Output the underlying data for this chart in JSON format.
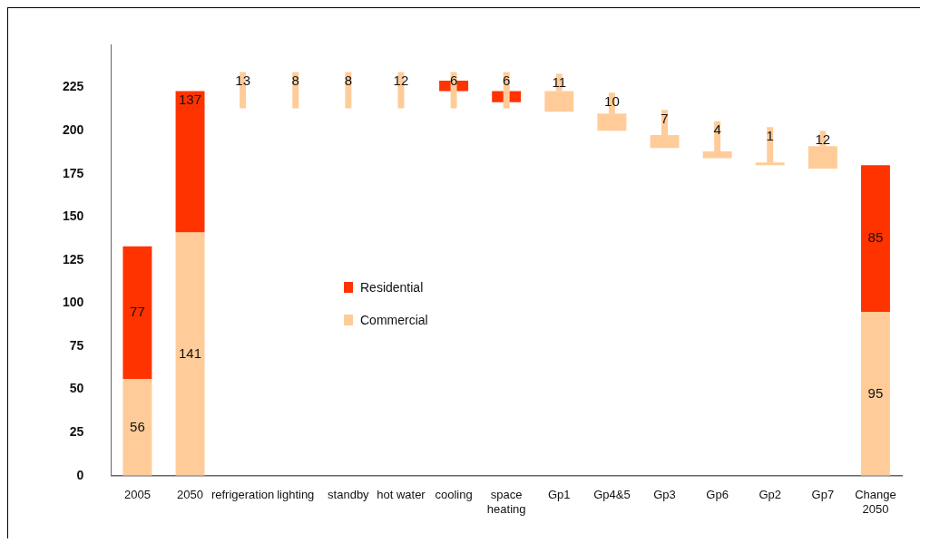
{
  "chart_data": {
    "type": "bar",
    "categories": [
      "2005",
      "2050",
      "refrigeration",
      "lighting",
      "standby",
      "hot water",
      "cooling",
      "space heating",
      "Gp1",
      "Gp4&5",
      "Gp3",
      "Gp6",
      "Gp2",
      "Gp7",
      "Change 2050"
    ],
    "series": [
      {
        "name": "Residential",
        "color": "#ff3300",
        "base": [
          56,
          141,
          null,
          null,
          null,
          null,
          223,
          216.5,
          null,
          null,
          null,
          null,
          null,
          null,
          95
        ],
        "values": [
          77,
          82,
          null,
          null,
          null,
          null,
          6,
          6.5,
          null,
          null,
          null,
          null,
          null,
          null,
          85
        ],
        "value_labels": [
          "77",
          null,
          null,
          null,
          null,
          null,
          null,
          null,
          null,
          null,
          null,
          null,
          null,
          null,
          "85"
        ]
      },
      {
        "name": "Commercial",
        "color": "#ffcc99",
        "base": [
          0,
          0,
          null,
          null,
          null,
          null,
          null,
          null,
          211,
          200,
          190,
          184,
          180,
          178,
          0
        ],
        "values": [
          56,
          141,
          null,
          null,
          null,
          null,
          null,
          null,
          12,
          10,
          7.5,
          4,
          1.5,
          13,
          95
        ],
        "value_labels": [
          "56",
          "141",
          null,
          null,
          null,
          null,
          null,
          null,
          null,
          null,
          null,
          null,
          null,
          null,
          "95"
        ]
      },
      {
        "color": "#ffcc99",
        "base": [
          null,
          null,
          213,
          213,
          213,
          213,
          213,
          213,
          223,
          210,
          197.5,
          188,
          181.5,
          191,
          null
        ],
        "values": [
          null,
          null,
          21,
          21,
          21,
          21,
          21,
          21,
          10,
          12,
          14.5,
          17.5,
          20.5,
          9,
          null
        ]
      }
    ],
    "annotations": [
      {
        "text": "137",
        "x": "2050",
        "y": 223
      },
      {
        "text": "13",
        "x": "refrigeration",
        "y": 234
      },
      {
        "text": "8",
        "x": "lighting",
        "y": 234
      },
      {
        "text": "8",
        "x": "standby",
        "y": 234
      },
      {
        "text": "12",
        "x": "hot water",
        "y": 234
      },
      {
        "text": "6",
        "x": "cooling",
        "y": 234
      },
      {
        "text": "6",
        "x": "space heating",
        "y": 234
      },
      {
        "text": "11",
        "x": "Gp1",
        "y": 233
      },
      {
        "text": "10",
        "x": "Gp4&5",
        "y": 222
      },
      {
        "text": "7",
        "x": "Gp3",
        "y": 212
      },
      {
        "text": "4",
        "x": "Gp6",
        "y": 205.5
      },
      {
        "text": "1",
        "x": "Gp2",
        "y": 202
      },
      {
        "text": "12",
        "x": "Gp7",
        "y": 200
      }
    ],
    "ylim": [
      0,
      250
    ],
    "yticks": [
      0,
      25,
      50,
      75,
      100,
      125,
      150,
      175,
      200,
      225
    ],
    "grid": false,
    "legend": "center"
  }
}
